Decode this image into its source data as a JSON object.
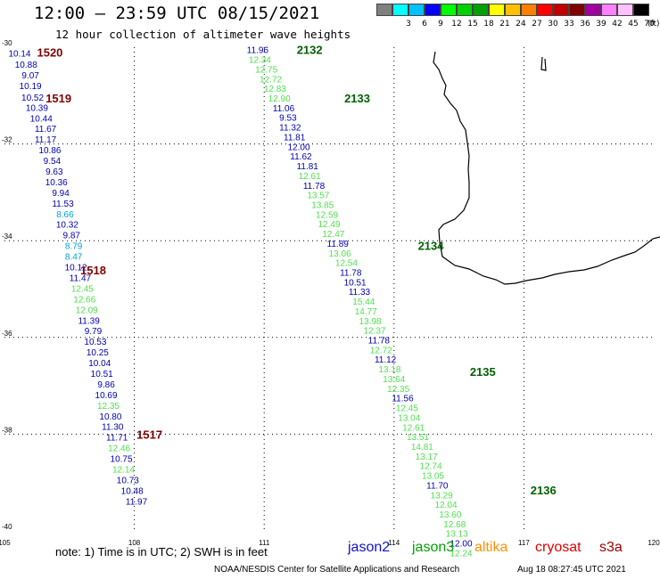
{
  "header": {
    "title": "12:00 – 23:59 UTC 08/15/2021",
    "subtitle": "12 hour collection of altimeter wave heights"
  },
  "legend": {
    "colors": [
      "#808080",
      "#00ffff",
      "#00c0ff",
      "#0000ff",
      "#00ff00",
      "#00d000",
      "#00a000",
      "#ffff00",
      "#ffc000",
      "#ff8000",
      "#ff0000",
      "#c00000",
      "#800000",
      "#a000a0",
      "#ff80ff",
      "#ffc0ff",
      "#000000"
    ],
    "labels": [
      "",
      "3",
      "6",
      "9",
      "12",
      "15",
      "18",
      "21",
      "24",
      "27",
      "30",
      "33",
      "36",
      "39",
      "42",
      "45",
      "70"
    ],
    "unit": "(ft)"
  },
  "axes": {
    "lon_ticks": [
      "105",
      "108",
      "111",
      "114",
      "117",
      "120"
    ],
    "lat_ticks": [
      "-30",
      "-32",
      "-34",
      "-36",
      "-38",
      "-40"
    ]
  },
  "palette": {
    "dark_blue": "#0000b0",
    "light_green": "#50e050",
    "light_blue": "#00a0e0",
    "dark_red": "#800000",
    "dark_green": "#006000"
  },
  "tracks": [
    {
      "pass_labels": [
        {
          "text": "1520",
          "lon": 106.05,
          "lat": -30.1
        },
        {
          "text": "1519",
          "lon": 106.25,
          "lat": -31.05
        },
        {
          "text": "1518",
          "lon": 107.05,
          "lat": -34.6
        },
        {
          "text": "1517",
          "lon": 108.35,
          "lat": -38.0
        }
      ],
      "points": [
        {
          "v": "10.14",
          "lon": 105.35,
          "lat": -30.12,
          "c": "dark_blue"
        },
        {
          "v": "10.88",
          "lon": 105.5,
          "lat": -30.35,
          "c": "dark_blue"
        },
        {
          "v": "9.07",
          "lon": 105.6,
          "lat": -30.57,
          "c": "dark_blue"
        },
        {
          "v": "10.19",
          "lon": 105.6,
          "lat": -30.79,
          "c": "dark_blue"
        },
        {
          "v": "10.52",
          "lon": 105.65,
          "lat": -31.03,
          "c": "dark_blue"
        },
        {
          "v": "10.39",
          "lon": 105.75,
          "lat": -31.24,
          "c": "dark_blue"
        },
        {
          "v": "10.44",
          "lon": 105.85,
          "lat": -31.46,
          "c": "dark_blue"
        },
        {
          "v": "11.67",
          "lon": 105.95,
          "lat": -31.68,
          "c": "dark_blue"
        },
        {
          "v": "11.17",
          "lon": 105.95,
          "lat": -31.9,
          "c": "dark_blue"
        },
        {
          "v": "10.86",
          "lon": 106.05,
          "lat": -32.12,
          "c": "dark_blue"
        },
        {
          "v": "9.54",
          "lon": 106.1,
          "lat": -32.34,
          "c": "dark_blue"
        },
        {
          "v": "9.63",
          "lon": 106.15,
          "lat": -32.56,
          "c": "dark_blue"
        },
        {
          "v": "10.36",
          "lon": 106.2,
          "lat": -32.78,
          "c": "dark_blue"
        },
        {
          "v": "9.94",
          "lon": 106.3,
          "lat": -33.0,
          "c": "dark_blue"
        },
        {
          "v": "11.53",
          "lon": 106.35,
          "lat": -33.22,
          "c": "dark_blue"
        },
        {
          "v": "8.66",
          "lon": 106.4,
          "lat": -33.44,
          "c": "light_blue"
        },
        {
          "v": "10.32",
          "lon": 106.45,
          "lat": -33.66,
          "c": "dark_blue"
        },
        {
          "v": "9.87",
          "lon": 106.55,
          "lat": -33.88,
          "c": "dark_blue"
        },
        {
          "v": "8.79",
          "lon": 106.6,
          "lat": -34.1,
          "c": "light_blue"
        },
        {
          "v": "8.47",
          "lon": 106.6,
          "lat": -34.32,
          "c": "light_blue"
        },
        {
          "v": "10.12",
          "lon": 106.65,
          "lat": -34.54,
          "c": "dark_blue"
        },
        {
          "v": "11.47",
          "lon": 106.75,
          "lat": -34.76,
          "c": "dark_blue"
        },
        {
          "v": "12.45",
          "lon": 106.8,
          "lat": -34.98,
          "c": "light_green"
        },
        {
          "v": "12.66",
          "lon": 106.85,
          "lat": -35.2,
          "c": "light_green"
        },
        {
          "v": "12.09",
          "lon": 106.9,
          "lat": -35.42,
          "c": "light_green"
        },
        {
          "v": "11.39",
          "lon": 106.95,
          "lat": -35.64,
          "c": "dark_blue"
        },
        {
          "v": "9.79",
          "lon": 107.05,
          "lat": -35.86,
          "c": "dark_blue"
        },
        {
          "v": "10.53",
          "lon": 107.1,
          "lat": -36.08,
          "c": "dark_blue"
        },
        {
          "v": "10.25",
          "lon": 107.15,
          "lat": -36.3,
          "c": "dark_blue"
        },
        {
          "v": "10.04",
          "lon": 107.2,
          "lat": -36.52,
          "c": "dark_blue"
        },
        {
          "v": "10.51",
          "lon": 107.25,
          "lat": -36.74,
          "c": "dark_blue"
        },
        {
          "v": "9.86",
          "lon": 107.35,
          "lat": -36.96,
          "c": "dark_blue"
        },
        {
          "v": "10.69",
          "lon": 107.35,
          "lat": -37.18,
          "c": "dark_blue"
        },
        {
          "v": "12.35",
          "lon": 107.4,
          "lat": -37.4,
          "c": "light_green"
        },
        {
          "v": "10.80",
          "lon": 107.45,
          "lat": -37.62,
          "c": "dark_blue"
        },
        {
          "v": "11.30",
          "lon": 107.5,
          "lat": -37.84,
          "c": "dark_blue"
        },
        {
          "v": "11.71",
          "lon": 107.6,
          "lat": -38.06,
          "c": "dark_blue"
        },
        {
          "v": "12.46",
          "lon": 107.65,
          "lat": -38.28,
          "c": "light_green"
        },
        {
          "v": "10.75",
          "lon": 107.7,
          "lat": -38.5,
          "c": "dark_blue"
        },
        {
          "v": "12.14",
          "lon": 107.75,
          "lat": -38.72,
          "c": "light_green"
        },
        {
          "v": "10.73",
          "lon": 107.85,
          "lat": -38.94,
          "c": "dark_blue"
        },
        {
          "v": "10.48",
          "lon": 107.95,
          "lat": -39.16,
          "c": "dark_blue"
        },
        {
          "v": "11.97",
          "lon": 108.05,
          "lat": -39.38,
          "c": "dark_blue"
        }
      ]
    },
    {
      "pass_labels": [
        {
          "text": "2132",
          "lon": 112.05,
          "lat": -30.05
        },
        {
          "text": "2133",
          "lon": 113.15,
          "lat": -31.05
        },
        {
          "text": "2134",
          "lon": 114.85,
          "lat": -34.1
        },
        {
          "text": "2135",
          "lon": 116.05,
          "lat": -36.7
        },
        {
          "text": "2136",
          "lon": 117.45,
          "lat": -39.15
        }
      ],
      "points": [
        {
          "v": "11.96",
          "lon": 110.85,
          "lat": -30.05,
          "c": "dark_blue"
        },
        {
          "v": "12.34",
          "lon": 110.9,
          "lat": -30.25,
          "c": "light_green"
        },
        {
          "v": "12.75",
          "lon": 111.05,
          "lat": -30.45,
          "c": "light_green"
        },
        {
          "v": "12.72",
          "lon": 111.15,
          "lat": -30.65,
          "c": "light_green"
        },
        {
          "v": "12.83",
          "lon": 111.25,
          "lat": -30.85,
          "c": "light_green"
        },
        {
          "v": "12.90",
          "lon": 111.35,
          "lat": -31.05,
          "c": "light_green"
        },
        {
          "v": "11.06",
          "lon": 111.45,
          "lat": -31.25,
          "c": "dark_blue"
        },
        {
          "v": "9.53",
          "lon": 111.55,
          "lat": -31.45,
          "c": "dark_blue"
        },
        {
          "v": "11.32",
          "lon": 111.6,
          "lat": -31.65,
          "c": "dark_blue"
        },
        {
          "v": "11.81",
          "lon": 111.7,
          "lat": -31.85,
          "c": "dark_blue"
        },
        {
          "v": "12.00",
          "lon": 111.8,
          "lat": -32.05,
          "c": "dark_blue"
        },
        {
          "v": "11.62",
          "lon": 111.85,
          "lat": -32.25,
          "c": "dark_blue"
        },
        {
          "v": "11.81",
          "lon": 112.0,
          "lat": -32.45,
          "c": "dark_blue"
        },
        {
          "v": "12.61",
          "lon": 112.05,
          "lat": -32.65,
          "c": "light_green"
        },
        {
          "v": "11.78",
          "lon": 112.15,
          "lat": -32.85,
          "c": "dark_blue"
        },
        {
          "v": "13.57",
          "lon": 112.25,
          "lat": -33.05,
          "c": "light_green"
        },
        {
          "v": "13.85",
          "lon": 112.35,
          "lat": -33.25,
          "c": "light_green"
        },
        {
          "v": "12.59",
          "lon": 112.45,
          "lat": -33.45,
          "c": "light_green"
        },
        {
          "v": "12.49",
          "lon": 112.5,
          "lat": -33.65,
          "c": "light_green"
        },
        {
          "v": "12.47",
          "lon": 112.6,
          "lat": -33.85,
          "c": "light_green"
        },
        {
          "v": "11.89",
          "lon": 112.7,
          "lat": -34.05,
          "c": "dark_blue"
        },
        {
          "v": "13.06",
          "lon": 112.75,
          "lat": -34.25,
          "c": "light_green"
        },
        {
          "v": "12.54",
          "lon": 112.9,
          "lat": -34.45,
          "c": "light_green"
        },
        {
          "v": "11.78",
          "lon": 113.0,
          "lat": -34.65,
          "c": "dark_blue"
        },
        {
          "v": "10.51",
          "lon": 113.1,
          "lat": -34.85,
          "c": "dark_blue"
        },
        {
          "v": "11.33",
          "lon": 113.2,
          "lat": -35.05,
          "c": "dark_blue"
        },
        {
          "v": "15.44",
          "lon": 113.3,
          "lat": -35.25,
          "c": "light_green"
        },
        {
          "v": "14.77",
          "lon": 113.35,
          "lat": -35.45,
          "c": "light_green"
        },
        {
          "v": "13.98",
          "lon": 113.45,
          "lat": -35.65,
          "c": "light_green"
        },
        {
          "v": "12.37",
          "lon": 113.55,
          "lat": -35.85,
          "c": "light_green"
        },
        {
          "v": "11.78",
          "lon": 113.65,
          "lat": -36.05,
          "c": "dark_blue"
        },
        {
          "v": "12.72",
          "lon": 113.7,
          "lat": -36.25,
          "c": "light_green"
        },
        {
          "v": "11.12",
          "lon": 113.8,
          "lat": -36.45,
          "c": "dark_blue"
        },
        {
          "v": "13.18",
          "lon": 113.9,
          "lat": -36.65,
          "c": "light_green"
        },
        {
          "v": "13.64",
          "lon": 114.0,
          "lat": -36.85,
          "c": "light_green"
        },
        {
          "v": "12.35",
          "lon": 114.1,
          "lat": -37.05,
          "c": "light_green"
        },
        {
          "v": "11.56",
          "lon": 114.2,
          "lat": -37.25,
          "c": "dark_blue"
        },
        {
          "v": "12.45",
          "lon": 114.3,
          "lat": -37.45,
          "c": "light_green"
        },
        {
          "v": "13.04",
          "lon": 114.35,
          "lat": -37.65,
          "c": "light_green"
        },
        {
          "v": "12.61",
          "lon": 114.45,
          "lat": -37.85,
          "c": "light_green"
        },
        {
          "v": "13.51",
          "lon": 114.55,
          "lat": -38.05,
          "c": "light_green"
        },
        {
          "v": "14.81",
          "lon": 114.65,
          "lat": -38.25,
          "c": "light_green"
        },
        {
          "v": "13.17",
          "lon": 114.75,
          "lat": -38.45,
          "c": "light_green"
        },
        {
          "v": "12.74",
          "lon": 114.85,
          "lat": -38.65,
          "c": "light_green"
        },
        {
          "v": "13.05",
          "lon": 114.9,
          "lat": -38.85,
          "c": "light_green"
        },
        {
          "v": "11.70",
          "lon": 115.0,
          "lat": -39.05,
          "c": "dark_blue"
        },
        {
          "v": "13.29",
          "lon": 115.1,
          "lat": -39.25,
          "c": "light_green"
        },
        {
          "v": "12.04",
          "lon": 115.2,
          "lat": -39.45,
          "c": "light_green"
        },
        {
          "v": "13.60",
          "lon": 115.3,
          "lat": -39.65,
          "c": "light_green"
        },
        {
          "v": "12.68",
          "lon": 115.4,
          "lat": -39.85,
          "c": "light_green"
        },
        {
          "v": "13.13",
          "lon": 115.45,
          "lat": -40.05,
          "c": "light_green"
        },
        {
          "v": "12.00",
          "lon": 115.55,
          "lat": -40.25,
          "c": "dark_blue"
        },
        {
          "v": "12.24",
          "lon": 115.55,
          "lat": -40.45,
          "c": "light_green"
        }
      ]
    }
  ],
  "footer": {
    "note": "note:  1) Time is in UTC;  2) SWH is in feet",
    "satellites": [
      {
        "name": "jason2",
        "color": "#1010d0"
      },
      {
        "name": "jason3",
        "color": "#00a000"
      },
      {
        "name": "altika",
        "color": "#ff9000"
      },
      {
        "name": "cryosat",
        "color": "#e00000"
      },
      {
        "name": "s3a",
        "color": "#a00000"
      }
    ],
    "credit": "NOAA/NESDIS Center for Satellite Applications and Research",
    "timestamp": "Aug 18 08:27:45 UTC 2021"
  }
}
